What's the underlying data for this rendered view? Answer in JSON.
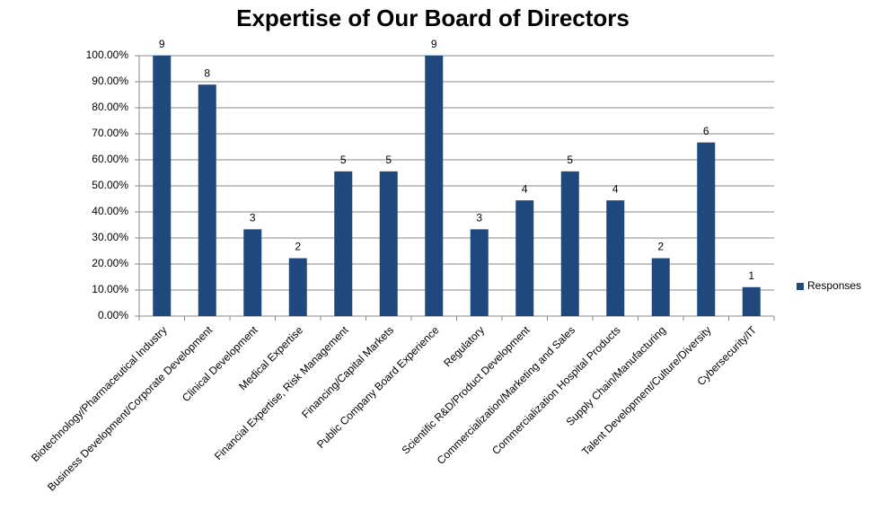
{
  "chart_data": {
    "type": "bar",
    "title": "Expertise of Our Board of Directors",
    "categories": [
      "Biotechnology/Pharmaceutical Industry",
      "Business Development/Corporate Development",
      "Clinical Development",
      "Medical Expertise",
      "Financial Expertise, Risk Management",
      "Financing/Capital Markets",
      "Public Company Board Experience",
      "Regulatory",
      "Scientific R&D/Product Development",
      "Commercialization/Marketing and Sales",
      "Commercialization Hospital Products",
      "Supply Chain/Manufacturing",
      "Talent Development/Culture/Diversity",
      "Cybersecurity/IT"
    ],
    "series": [
      {
        "name": "Responses",
        "color": "#1f497d",
        "values": [
          100,
          88.89,
          33.33,
          22.22,
          55.56,
          55.56,
          100,
          33.33,
          44.44,
          55.56,
          44.44,
          22.22,
          66.67,
          11.11
        ]
      }
    ],
    "data_labels": [
      9,
      8,
      3,
      2,
      5,
      5,
      9,
      3,
      4,
      5,
      4,
      2,
      6,
      1
    ],
    "ylim": [
      0,
      100
    ],
    "yticks": [
      {
        "value": 0,
        "label": "0.00%"
      },
      {
        "value": 10,
        "label": "10.00%"
      },
      {
        "value": 20,
        "label": "20.00%"
      },
      {
        "value": 30,
        "label": "30.00%"
      },
      {
        "value": 40,
        "label": "40.00%"
      },
      {
        "value": 50,
        "label": "50.00%"
      },
      {
        "value": 60,
        "label": "60.00%"
      },
      {
        "value": 70,
        "label": "70.00%"
      },
      {
        "value": 80,
        "label": "80.00%"
      },
      {
        "value": 90,
        "label": "90.00%"
      },
      {
        "value": 100,
        "label": "100.00%"
      }
    ],
    "grid": true,
    "legend": "right"
  }
}
